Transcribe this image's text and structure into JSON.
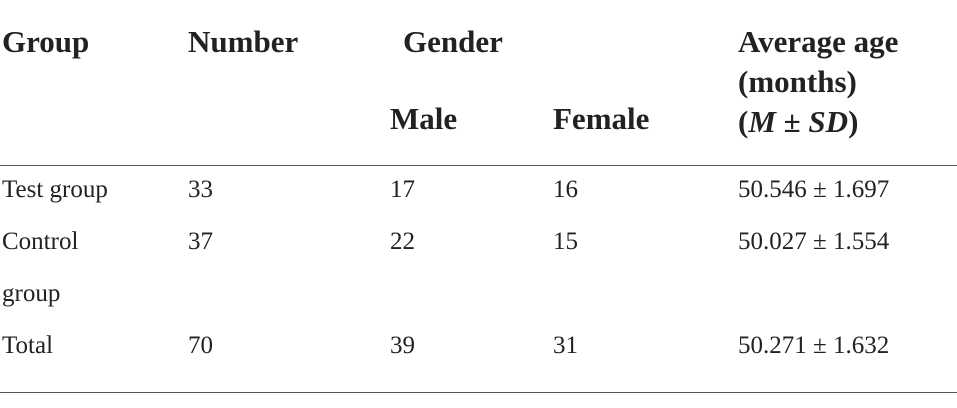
{
  "table": {
    "header": {
      "group": "Group",
      "number": "Number",
      "gender": "Gender",
      "male": "Male",
      "female": "Female",
      "age": [
        "Average age",
        "(months)"
      ],
      "age_stat": {
        "open": "(",
        "m": "M",
        "pm": " ± ",
        "sd": "SD",
        "close": ")"
      }
    },
    "rows": [
      [
        "Test group",
        "33",
        "17",
        "16",
        "50.546 ± 1.697"
      ],
      [
        "Control group",
        "37",
        "22",
        "15",
        "50.027 ± 1.554"
      ],
      [
        "Total",
        "70",
        "39",
        "31",
        "50.271 ± 1.632"
      ]
    ]
  }
}
